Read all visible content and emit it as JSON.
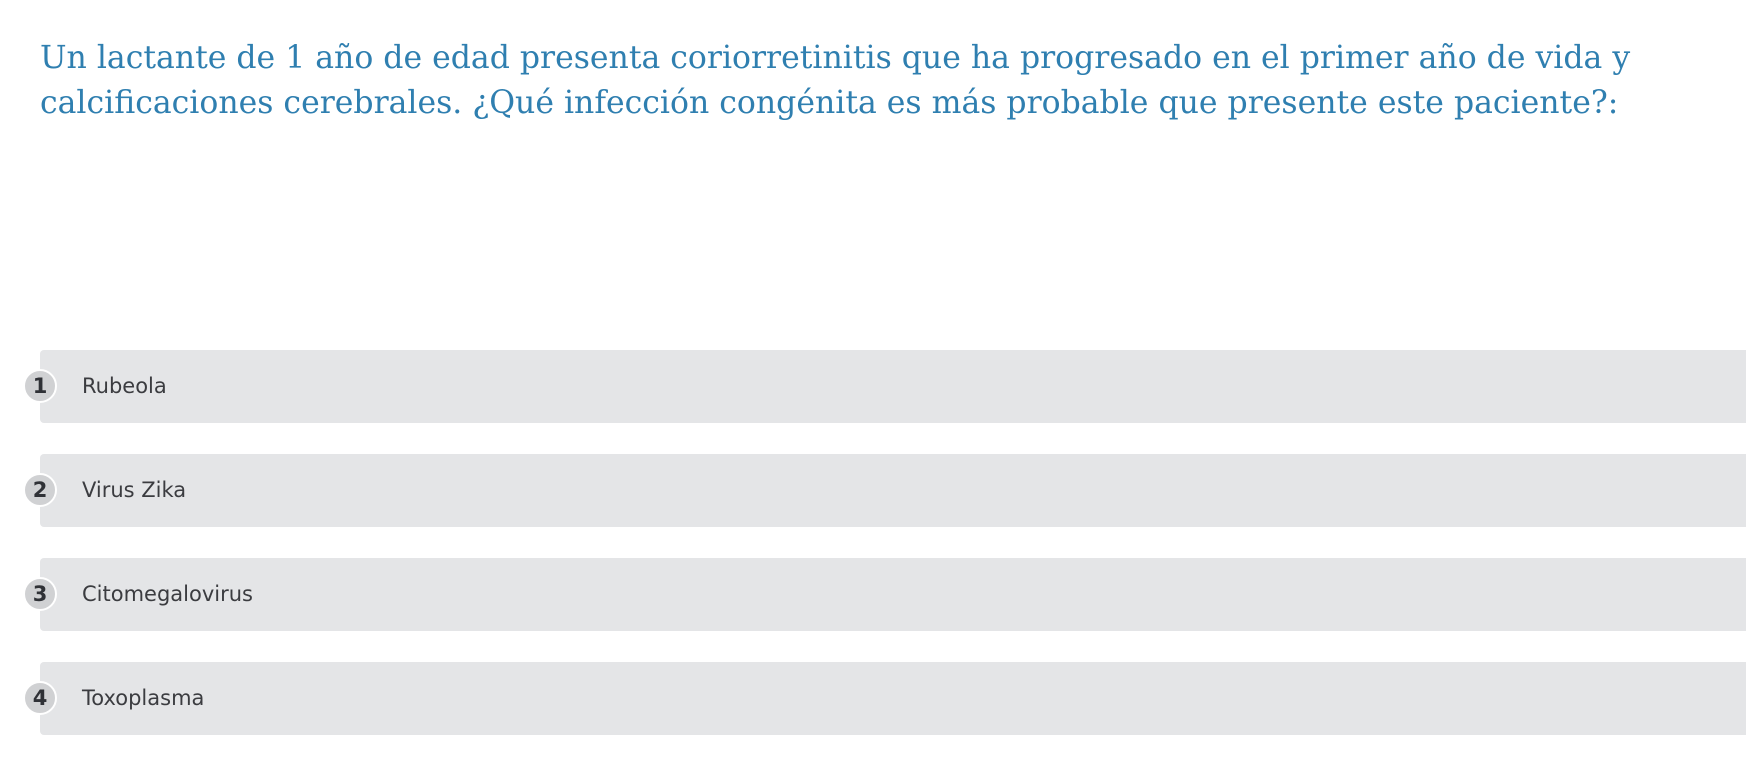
{
  "question": {
    "text": "Un lactante de 1 año de edad presenta coriorretinitis que ha progresado en el primer año de vida y calcificaciones cerebrales. ¿Qué infección congénita es más probable que presente este paciente?:"
  },
  "options": [
    {
      "number": "1",
      "label": "Rubeola"
    },
    {
      "number": "2",
      "label": "Virus Zika"
    },
    {
      "number": "3",
      "label": "Citomegalovirus"
    },
    {
      "number": "4",
      "label": "Toxoplasma"
    }
  ],
  "colors": {
    "question_text": "#2f7fb0",
    "option_background": "#e4e5e7",
    "number_badge": "#d0d1d3",
    "option_text": "#3b3c40"
  }
}
